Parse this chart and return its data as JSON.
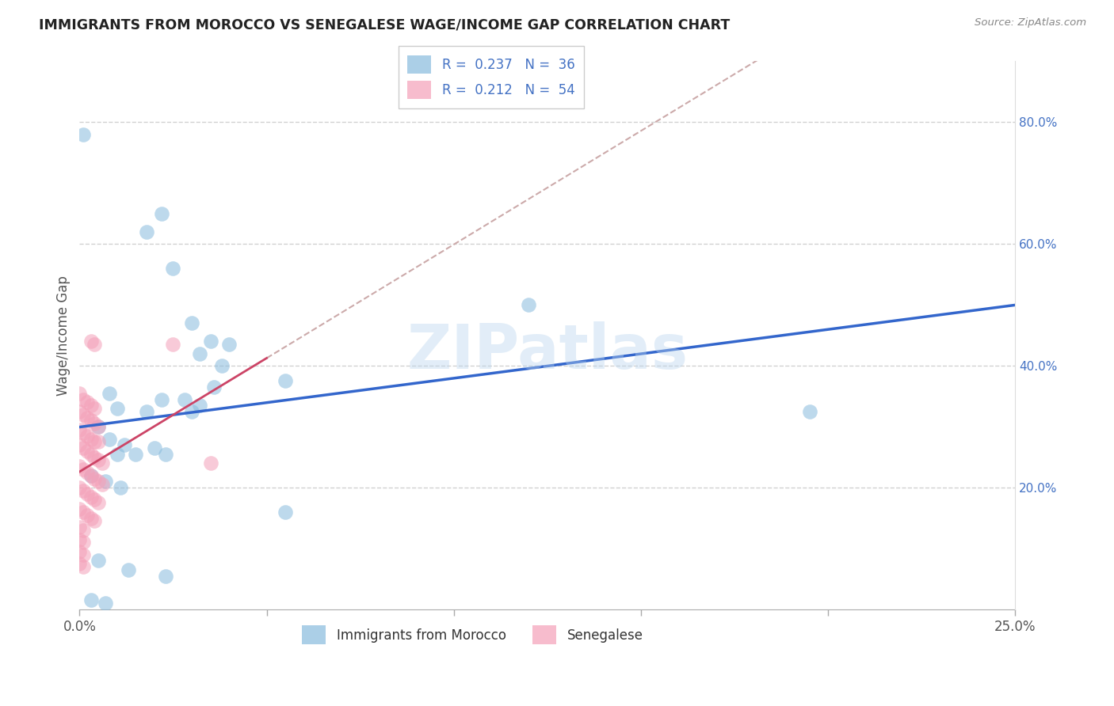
{
  "title": "IMMIGRANTS FROM MOROCCO VS SENEGALESE WAGE/INCOME GAP CORRELATION CHART",
  "source": "Source: ZipAtlas.com",
  "ylabel": "Wage/Income Gap",
  "legend_bottom": [
    "Immigrants from Morocco",
    "Senegalese"
  ],
  "watermark": "ZIPatlas",
  "blue_color": "#88bbdd",
  "pink_color": "#f4a0b8",
  "blue_line_color": "#3366cc",
  "pink_line_color": "#cc4466",
  "dashed_line_color": "#ccaaaa",
  "xlim": [
    0.0,
    0.25
  ],
  "ylim": [
    0.0,
    0.9
  ],
  "morocco_points": [
    [
      0.001,
      0.78
    ],
    [
      0.022,
      0.65
    ],
    [
      0.018,
      0.62
    ],
    [
      0.025,
      0.56
    ],
    [
      0.03,
      0.47
    ],
    [
      0.035,
      0.44
    ],
    [
      0.04,
      0.435
    ],
    [
      0.032,
      0.42
    ],
    [
      0.038,
      0.4
    ],
    [
      0.12,
      0.5
    ],
    [
      0.036,
      0.365
    ],
    [
      0.008,
      0.355
    ],
    [
      0.022,
      0.345
    ],
    [
      0.028,
      0.345
    ],
    [
      0.032,
      0.335
    ],
    [
      0.01,
      0.33
    ],
    [
      0.018,
      0.325
    ],
    [
      0.03,
      0.325
    ],
    [
      0.055,
      0.375
    ],
    [
      0.005,
      0.3
    ],
    [
      0.008,
      0.28
    ],
    [
      0.012,
      0.27
    ],
    [
      0.02,
      0.265
    ],
    [
      0.01,
      0.255
    ],
    [
      0.015,
      0.255
    ],
    [
      0.023,
      0.255
    ],
    [
      0.003,
      0.22
    ],
    [
      0.007,
      0.21
    ],
    [
      0.011,
      0.2
    ],
    [
      0.055,
      0.16
    ],
    [
      0.005,
      0.08
    ],
    [
      0.013,
      0.065
    ],
    [
      0.023,
      0.055
    ],
    [
      0.195,
      0.325
    ],
    [
      0.003,
      0.015
    ],
    [
      0.007,
      0.01
    ]
  ],
  "senegalese_points": [
    [
      0.0,
      0.355
    ],
    [
      0.001,
      0.345
    ],
    [
      0.002,
      0.34
    ],
    [
      0.003,
      0.335
    ],
    [
      0.004,
      0.33
    ],
    [
      0.0,
      0.325
    ],
    [
      0.001,
      0.32
    ],
    [
      0.002,
      0.315
    ],
    [
      0.003,
      0.31
    ],
    [
      0.004,
      0.305
    ],
    [
      0.005,
      0.3
    ],
    [
      0.0,
      0.295
    ],
    [
      0.001,
      0.29
    ],
    [
      0.002,
      0.285
    ],
    [
      0.003,
      0.28
    ],
    [
      0.004,
      0.275
    ],
    [
      0.005,
      0.275
    ],
    [
      0.0,
      0.27
    ],
    [
      0.001,
      0.265
    ],
    [
      0.002,
      0.26
    ],
    [
      0.003,
      0.255
    ],
    [
      0.004,
      0.25
    ],
    [
      0.005,
      0.245
    ],
    [
      0.006,
      0.24
    ],
    [
      0.0,
      0.235
    ],
    [
      0.001,
      0.23
    ],
    [
      0.002,
      0.225
    ],
    [
      0.003,
      0.22
    ],
    [
      0.004,
      0.215
    ],
    [
      0.005,
      0.21
    ],
    [
      0.006,
      0.205
    ],
    [
      0.0,
      0.2
    ],
    [
      0.001,
      0.195
    ],
    [
      0.002,
      0.19
    ],
    [
      0.003,
      0.185
    ],
    [
      0.004,
      0.18
    ],
    [
      0.005,
      0.175
    ],
    [
      0.0,
      0.165
    ],
    [
      0.001,
      0.16
    ],
    [
      0.002,
      0.155
    ],
    [
      0.003,
      0.15
    ],
    [
      0.004,
      0.145
    ],
    [
      0.0,
      0.135
    ],
    [
      0.001,
      0.13
    ],
    [
      0.0,
      0.115
    ],
    [
      0.001,
      0.11
    ],
    [
      0.0,
      0.095
    ],
    [
      0.001,
      0.09
    ],
    [
      0.0,
      0.075
    ],
    [
      0.001,
      0.07
    ],
    [
      0.003,
      0.44
    ],
    [
      0.004,
      0.435
    ],
    [
      0.025,
      0.435
    ],
    [
      0.035,
      0.24
    ]
  ]
}
